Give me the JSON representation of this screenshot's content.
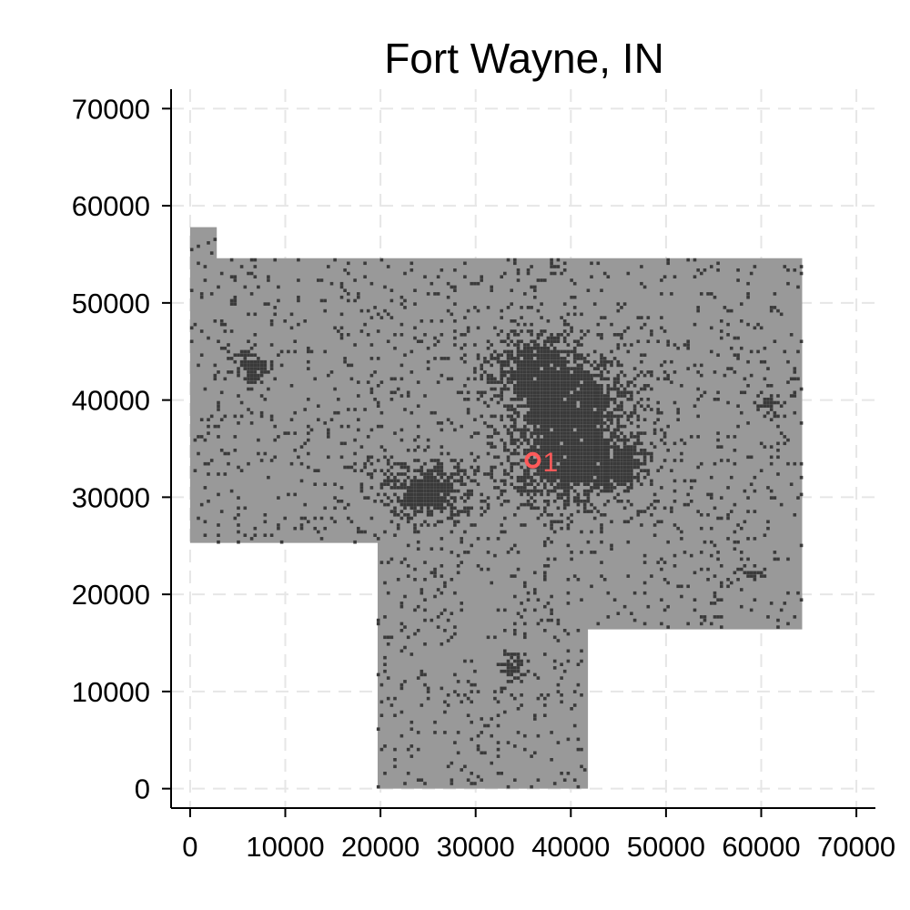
{
  "chart_data": {
    "type": "scatter",
    "title": "Fort Wayne, IN",
    "xlabel": "",
    "ylabel": "",
    "xlim": [
      -2000,
      72000
    ],
    "ylim": [
      -2000,
      72000
    ],
    "x_ticks": [
      0,
      10000,
      20000,
      30000,
      40000,
      50000,
      60000,
      70000
    ],
    "y_ticks": [
      0,
      10000,
      20000,
      30000,
      40000,
      50000,
      60000,
      70000
    ],
    "x_tick_labels": [
      "0",
      "10000",
      "20000",
      "30000",
      "40000",
      "50000",
      "60000",
      "70000"
    ],
    "y_tick_labels": [
      "0",
      "10000",
      "20000",
      "30000",
      "40000",
      "50000",
      "60000",
      "70000"
    ],
    "grid": true,
    "grid_style": "dashed",
    "region": {
      "fill": "#999999",
      "polygon": [
        [
          0,
          25300
        ],
        [
          0,
          57800
        ],
        [
          2800,
          57800
        ],
        [
          2800,
          54600
        ],
        [
          64300,
          54600
        ],
        [
          64300,
          16400
        ],
        [
          41800,
          16400
        ],
        [
          41800,
          0
        ],
        [
          19700,
          0
        ],
        [
          19700,
          25300
        ]
      ]
    },
    "density_color": "#3a3a3a",
    "dense_clusters": [
      {
        "x": 38500,
        "y": 33000,
        "rx": 5500,
        "ry": 4500
      },
      {
        "x": 40500,
        "y": 39000,
        "rx": 6500,
        "ry": 5000
      },
      {
        "x": 36000,
        "y": 43000,
        "rx": 4500,
        "ry": 4000
      },
      {
        "x": 25000,
        "y": 30500,
        "rx": 5500,
        "ry": 3000
      },
      {
        "x": 44500,
        "y": 33000,
        "rx": 3500,
        "ry": 2500
      },
      {
        "x": 6500,
        "y": 43000,
        "rx": 2200,
        "ry": 1800
      },
      {
        "x": 33500,
        "y": 12500,
        "rx": 1300,
        "ry": 1300
      },
      {
        "x": 58800,
        "y": 22000,
        "rx": 1100,
        "ry": 1000
      },
      {
        "x": 60500,
        "y": 39500,
        "rx": 1100,
        "ry": 1000
      }
    ],
    "marker": {
      "x": 36000,
      "y": 33800,
      "label": "1",
      "color": "#ff5a5a"
    }
  }
}
